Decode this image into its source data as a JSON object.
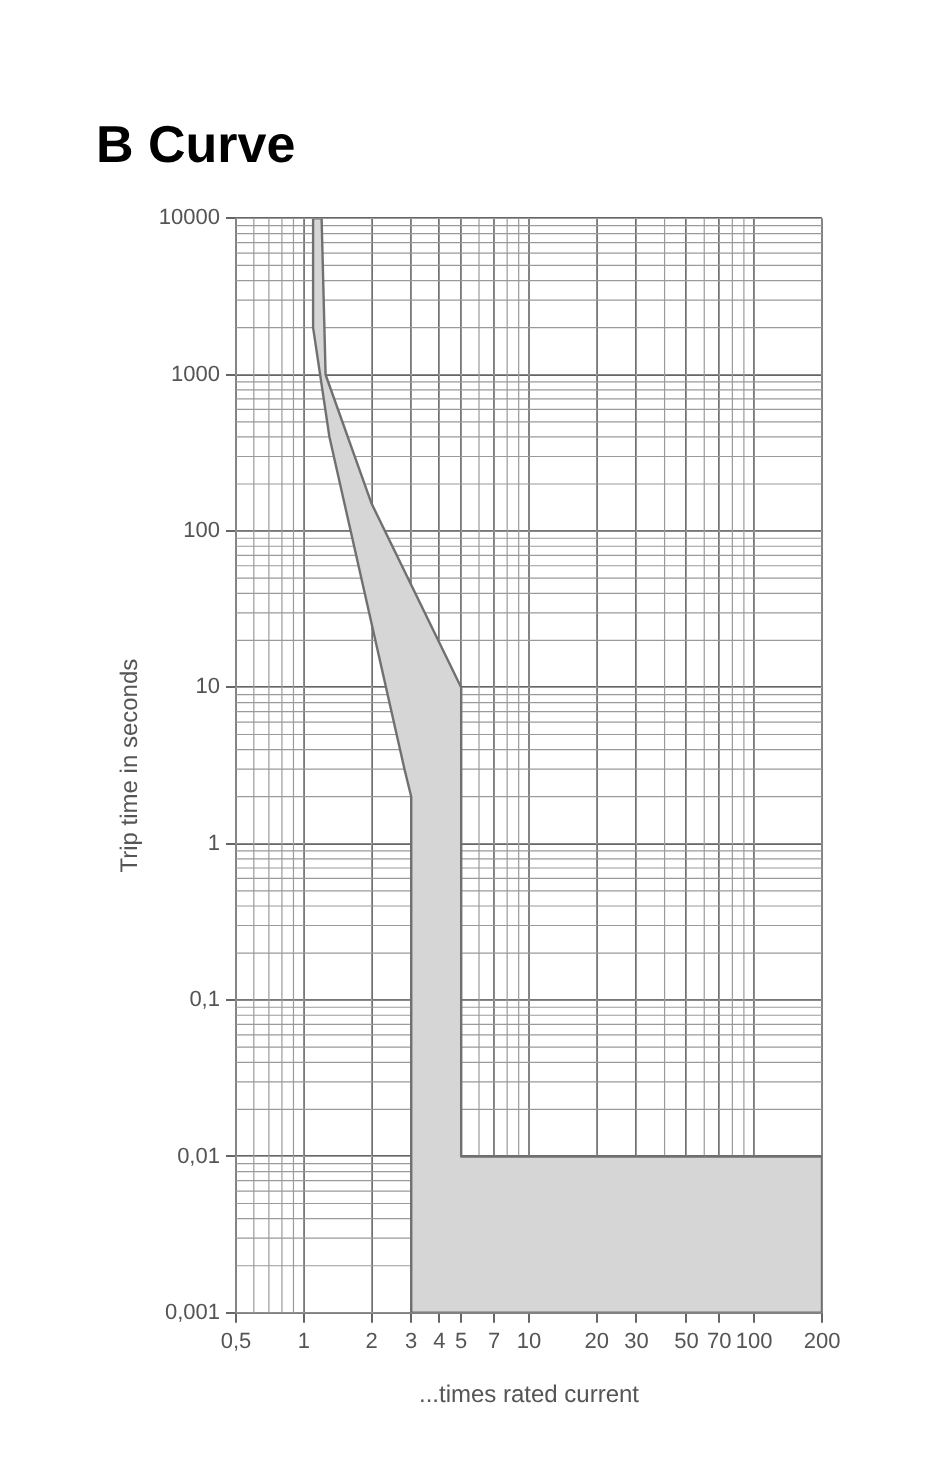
{
  "chart_data": {
    "type": "area",
    "title": "B Curve",
    "xlabel": "...times rated current",
    "ylabel": "Trip time in seconds",
    "log": "xy",
    "grid": true,
    "xlim": [
      0.5,
      200
    ],
    "ylim": [
      0.001,
      10000
    ],
    "xticks": [
      {
        "value": 0.5,
        "label": "0,5"
      },
      1,
      2,
      3,
      4,
      5,
      7,
      10,
      20,
      30,
      50,
      70,
      100,
      200
    ],
    "yticks": [
      {
        "value": 0.001,
        "label": "0,001"
      },
      {
        "value": 0.01,
        "label": "0,01"
      },
      {
        "value": 0.1,
        "label": "0,1"
      },
      1,
      10,
      100,
      1000,
      10000
    ],
    "series": [
      {
        "color": "#d6d6d6",
        "x": [
          1.1,
          1.2,
          1.25,
          2,
          5,
          5,
          200,
          200,
          3,
          3,
          2.8,
          1.3,
          1.1,
          1.1
        ],
        "values": [
          10000,
          10000,
          1000,
          150,
          10,
          0.01,
          0.01,
          0.001,
          0.001,
          2,
          3,
          400,
          2000,
          10000
        ]
      }
    ]
  }
}
